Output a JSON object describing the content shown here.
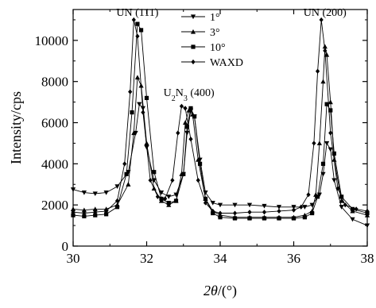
{
  "chart_data": {
    "type": "line",
    "xlabel_symbol": "2θ",
    "xlabel_unit": "/(°)",
    "ylabel": "Intensity/cps",
    "xlim": [
      30,
      38
    ],
    "ylim": [
      0,
      11500
    ],
    "x_ticks": [
      "30",
      "32",
      "34",
      "36",
      "38"
    ],
    "y_ticks": [
      "0",
      "2000",
      "4000",
      "6000",
      "8000",
      "10000"
    ],
    "x_tick_values": [
      30,
      32,
      34,
      36,
      38
    ],
    "y_tick_values": [
      0,
      2000,
      4000,
      6000,
      8000,
      10000
    ],
    "grid": false,
    "legend_position": "top-center",
    "annotations": [
      {
        "text": "UN (111)",
        "x": 31.75,
        "y": 11200
      },
      {
        "text": "U",
        "sub": "2",
        "text2": "N",
        "sub2": "3",
        "text3": " (400)",
        "x": 33.15,
        "y": 7300
      },
      {
        "text": "UN (200)",
        "x": 36.85,
        "y": 11200
      }
    ],
    "series": [
      {
        "name": "1°",
        "marker": "triangle-down",
        "points": [
          [
            30.0,
            2750
          ],
          [
            30.3,
            2600
          ],
          [
            30.6,
            2550
          ],
          [
            30.9,
            2600
          ],
          [
            31.2,
            2900
          ],
          [
            31.5,
            3600
          ],
          [
            31.7,
            5500
          ],
          [
            31.8,
            6900
          ],
          [
            31.9,
            6700
          ],
          [
            32.0,
            4800
          ],
          [
            32.2,
            3200
          ],
          [
            32.4,
            2600
          ],
          [
            32.6,
            2400
          ],
          [
            32.8,
            2500
          ],
          [
            33.0,
            3500
          ],
          [
            33.1,
            5500
          ],
          [
            33.2,
            6600
          ],
          [
            33.3,
            6300
          ],
          [
            33.45,
            4200
          ],
          [
            33.6,
            2600
          ],
          [
            33.8,
            2100
          ],
          [
            34.0,
            2000
          ],
          [
            34.4,
            2000
          ],
          [
            34.8,
            2000
          ],
          [
            35.2,
            1950
          ],
          [
            35.6,
            1900
          ],
          [
            36.0,
            1900
          ],
          [
            36.3,
            1900
          ],
          [
            36.5,
            2000
          ],
          [
            36.7,
            2500
          ],
          [
            36.8,
            3500
          ],
          [
            36.9,
            5000
          ],
          [
            37.0,
            4700
          ],
          [
            37.1,
            3200
          ],
          [
            37.3,
            1900
          ],
          [
            37.6,
            1300
          ],
          [
            38.0,
            1000
          ]
        ]
      },
      {
        "name": "3°",
        "marker": "triangle-up",
        "points": [
          [
            30.0,
            1800
          ],
          [
            30.3,
            1750
          ],
          [
            30.6,
            1800
          ],
          [
            30.9,
            1800
          ],
          [
            31.2,
            2000
          ],
          [
            31.5,
            3000
          ],
          [
            31.65,
            5500
          ],
          [
            31.75,
            8200
          ],
          [
            31.85,
            7800
          ],
          [
            32.0,
            5000
          ],
          [
            32.2,
            2800
          ],
          [
            32.4,
            2200
          ],
          [
            32.6,
            2000
          ],
          [
            32.8,
            2200
          ],
          [
            32.95,
            3500
          ],
          [
            33.05,
            6000
          ],
          [
            33.15,
            6600
          ],
          [
            33.25,
            6400
          ],
          [
            33.4,
            4200
          ],
          [
            33.6,
            2300
          ],
          [
            33.8,
            1700
          ],
          [
            34.0,
            1500
          ],
          [
            34.4,
            1400
          ],
          [
            34.8,
            1400
          ],
          [
            35.2,
            1400
          ],
          [
            35.6,
            1400
          ],
          [
            36.0,
            1400
          ],
          [
            36.3,
            1500
          ],
          [
            36.5,
            1700
          ],
          [
            36.6,
            2500
          ],
          [
            36.7,
            5000
          ],
          [
            36.8,
            8000
          ],
          [
            36.85,
            9700
          ],
          [
            36.9,
            9300
          ],
          [
            37.0,
            7000
          ],
          [
            37.1,
            4200
          ],
          [
            37.3,
            2200
          ],
          [
            37.6,
            1700
          ],
          [
            38.0,
            1500
          ]
        ]
      },
      {
        "name": "10°",
        "marker": "square",
        "points": [
          [
            30.0,
            1500
          ],
          [
            30.3,
            1450
          ],
          [
            30.6,
            1500
          ],
          [
            30.9,
            1550
          ],
          [
            31.2,
            1900
          ],
          [
            31.45,
            3500
          ],
          [
            31.6,
            6500
          ],
          [
            31.75,
            10800
          ],
          [
            31.85,
            10500
          ],
          [
            32.0,
            7200
          ],
          [
            32.2,
            3600
          ],
          [
            32.4,
            2300
          ],
          [
            32.6,
            2100
          ],
          [
            32.8,
            2200
          ],
          [
            33.0,
            3500
          ],
          [
            33.1,
            5800
          ],
          [
            33.2,
            6700
          ],
          [
            33.3,
            6300
          ],
          [
            33.45,
            4000
          ],
          [
            33.6,
            2300
          ],
          [
            33.8,
            1600
          ],
          [
            34.0,
            1400
          ],
          [
            34.4,
            1350
          ],
          [
            34.8,
            1350
          ],
          [
            35.2,
            1350
          ],
          [
            35.6,
            1350
          ],
          [
            36.0,
            1350
          ],
          [
            36.3,
            1400
          ],
          [
            36.5,
            1600
          ],
          [
            36.65,
            2400
          ],
          [
            36.8,
            4000
          ],
          [
            36.9,
            6900
          ],
          [
            37.0,
            6600
          ],
          [
            37.1,
            4500
          ],
          [
            37.3,
            2400
          ],
          [
            37.6,
            1800
          ],
          [
            38.0,
            1600
          ]
        ]
      },
      {
        "name": "WAXD",
        "marker": "diamond",
        "points": [
          [
            30.0,
            1650
          ],
          [
            30.3,
            1600
          ],
          [
            30.6,
            1650
          ],
          [
            30.9,
            1700
          ],
          [
            31.2,
            2200
          ],
          [
            31.4,
            4000
          ],
          [
            31.55,
            7500
          ],
          [
            31.65,
            11000
          ],
          [
            31.75,
            10200
          ],
          [
            31.9,
            6500
          ],
          [
            32.1,
            3200
          ],
          [
            32.3,
            2400
          ],
          [
            32.5,
            2300
          ],
          [
            32.7,
            3200
          ],
          [
            32.85,
            5500
          ],
          [
            32.95,
            6800
          ],
          [
            33.05,
            6700
          ],
          [
            33.2,
            5200
          ],
          [
            33.4,
            3200
          ],
          [
            33.6,
            2100
          ],
          [
            33.8,
            1700
          ],
          [
            34.0,
            1600
          ],
          [
            34.4,
            1600
          ],
          [
            34.8,
            1650
          ],
          [
            35.2,
            1650
          ],
          [
            35.6,
            1700
          ],
          [
            36.0,
            1750
          ],
          [
            36.2,
            1900
          ],
          [
            36.4,
            2500
          ],
          [
            36.55,
            5000
          ],
          [
            36.65,
            8500
          ],
          [
            36.75,
            11000
          ],
          [
            36.85,
            9500
          ],
          [
            37.0,
            5500
          ],
          [
            37.2,
            2800
          ],
          [
            37.4,
            2000
          ],
          [
            37.7,
            1800
          ],
          [
            38.0,
            1700
          ]
        ]
      }
    ]
  }
}
